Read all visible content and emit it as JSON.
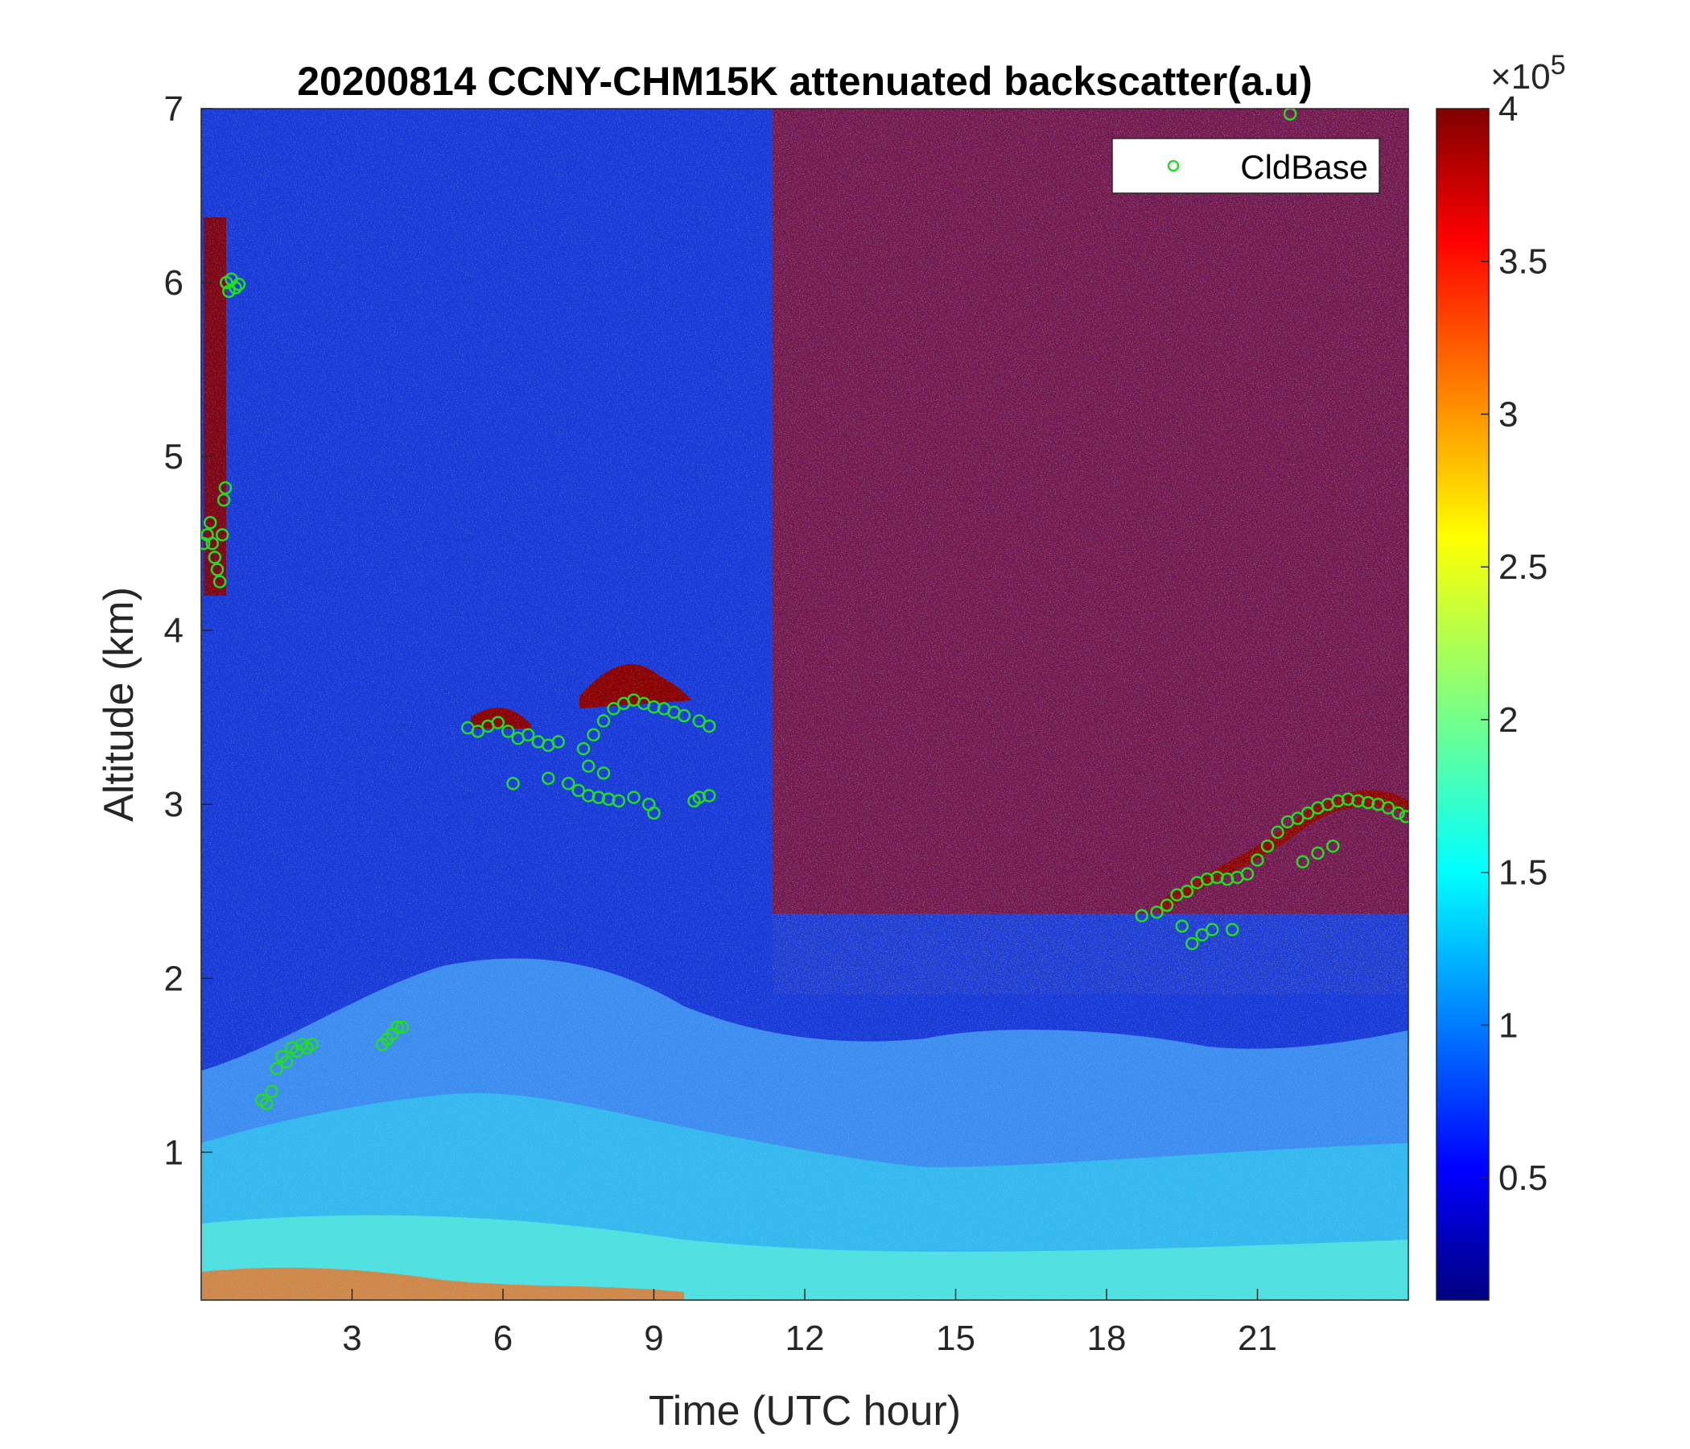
{
  "chart_data": {
    "type": "heatmap",
    "title": "20200814 CCNY-CHM15K attenuated backscatter(a.u)",
    "xlabel": "Time (UTC hour)",
    "ylabel": "Altitude (km)",
    "xlim": [
      0,
      24
    ],
    "ylim": [
      0.15,
      7
    ],
    "x_ticks": [
      3,
      6,
      9,
      12,
      15,
      18,
      21
    ],
    "x_tick_labels": [
      "3",
      "6",
      "9",
      "12",
      "15",
      "18",
      "21"
    ],
    "y_ticks": [
      1,
      2,
      3,
      4,
      5,
      6,
      7
    ],
    "y_tick_labels": [
      "1",
      "2",
      "3",
      "4",
      "5",
      "6",
      "7"
    ],
    "colorbar": {
      "colormap": "jet",
      "range": [
        0.1,
        4
      ],
      "ticks": [
        0.5,
        1,
        1.5,
        2,
        2.5,
        3,
        3.5,
        4
      ],
      "tick_labels": [
        "0.5",
        "1",
        "1.5",
        "2",
        "2.5",
        "3",
        "3.5",
        "4"
      ],
      "multiplier_prefix": "×10",
      "multiplier_exponent": "5"
    },
    "legend": {
      "position": "top-right",
      "entries": [
        "CldBase"
      ]
    },
    "series": [
      {
        "name": "CldBase",
        "type": "scatter",
        "color": "#22dd22",
        "points": [
          [
            0.05,
            4.5
          ],
          [
            0.12,
            4.55
          ],
          [
            0.18,
            4.62
          ],
          [
            0.22,
            4.5
          ],
          [
            0.27,
            4.42
          ],
          [
            0.32,
            4.35
          ],
          [
            0.37,
            4.28
          ],
          [
            0.42,
            4.55
          ],
          [
            0.45,
            4.75
          ],
          [
            0.48,
            4.82
          ],
          [
            0.5,
            6.0
          ],
          [
            0.55,
            5.95
          ],
          [
            0.6,
            6.02
          ],
          [
            0.68,
            5.97
          ],
          [
            0.75,
            5.99
          ],
          [
            1.2,
            1.3
          ],
          [
            1.3,
            1.28
          ],
          [
            1.4,
            1.35
          ],
          [
            1.5,
            1.48
          ],
          [
            1.6,
            1.55
          ],
          [
            1.7,
            1.52
          ],
          [
            1.8,
            1.6
          ],
          [
            1.9,
            1.58
          ],
          [
            2.0,
            1.62
          ],
          [
            2.1,
            1.6
          ],
          [
            2.2,
            1.62
          ],
          [
            3.6,
            1.62
          ],
          [
            3.7,
            1.65
          ],
          [
            3.8,
            1.68
          ],
          [
            3.9,
            1.72
          ],
          [
            4.0,
            1.72
          ],
          [
            5.3,
            3.44
          ],
          [
            5.5,
            3.42
          ],
          [
            5.7,
            3.45
          ],
          [
            5.9,
            3.47
          ],
          [
            6.1,
            3.42
          ],
          [
            6.3,
            3.38
          ],
          [
            6.5,
            3.4
          ],
          [
            6.7,
            3.36
          ],
          [
            6.9,
            3.34
          ],
          [
            7.1,
            3.36
          ],
          [
            6.2,
            3.12
          ],
          [
            6.9,
            3.15
          ],
          [
            7.3,
            3.12
          ],
          [
            7.5,
            3.08
          ],
          [
            7.7,
            3.05
          ],
          [
            7.9,
            3.04
          ],
          [
            8.1,
            3.03
          ],
          [
            8.3,
            3.02
          ],
          [
            8.6,
            3.04
          ],
          [
            8.9,
            3.0
          ],
          [
            9.0,
            2.95
          ],
          [
            7.7,
            3.22
          ],
          [
            8.0,
            3.18
          ],
          [
            7.6,
            3.32
          ],
          [
            7.8,
            3.4
          ],
          [
            8.0,
            3.48
          ],
          [
            8.2,
            3.55
          ],
          [
            8.4,
            3.58
          ],
          [
            8.6,
            3.6
          ],
          [
            8.8,
            3.58
          ],
          [
            9.0,
            3.56
          ],
          [
            9.2,
            3.55
          ],
          [
            9.4,
            3.53
          ],
          [
            9.6,
            3.51
          ],
          [
            9.9,
            3.48
          ],
          [
            10.1,
            3.45
          ],
          [
            9.8,
            3.02
          ],
          [
            9.9,
            3.04
          ],
          [
            10.1,
            3.05
          ],
          [
            18.7,
            2.36
          ],
          [
            19.0,
            2.38
          ],
          [
            19.2,
            2.42
          ],
          [
            19.4,
            2.48
          ],
          [
            19.6,
            2.5
          ],
          [
            19.8,
            2.55
          ],
          [
            20.0,
            2.57
          ],
          [
            20.2,
            2.58
          ],
          [
            20.4,
            2.57
          ],
          [
            20.6,
            2.58
          ],
          [
            20.8,
            2.6
          ],
          [
            21.0,
            2.68
          ],
          [
            21.2,
            2.76
          ],
          [
            21.4,
            2.84
          ],
          [
            21.6,
            2.9
          ],
          [
            21.8,
            2.92
          ],
          [
            22.0,
            2.95
          ],
          [
            22.2,
            2.98
          ],
          [
            22.4,
            3.0
          ],
          [
            22.6,
            3.02
          ],
          [
            22.8,
            3.03
          ],
          [
            23.0,
            3.02
          ],
          [
            23.2,
            3.01
          ],
          [
            23.4,
            3.0
          ],
          [
            23.6,
            2.98
          ],
          [
            23.8,
            2.95
          ],
          [
            23.95,
            2.93
          ],
          [
            19.5,
            2.3
          ],
          [
            19.7,
            2.2
          ],
          [
            19.9,
            2.25
          ],
          [
            20.1,
            2.28
          ],
          [
            20.5,
            2.28
          ],
          [
            21.9,
            2.67
          ],
          [
            22.2,
            2.72
          ],
          [
            22.5,
            2.76
          ],
          [
            21.65,
            6.97
          ]
        ]
      }
    ]
  }
}
